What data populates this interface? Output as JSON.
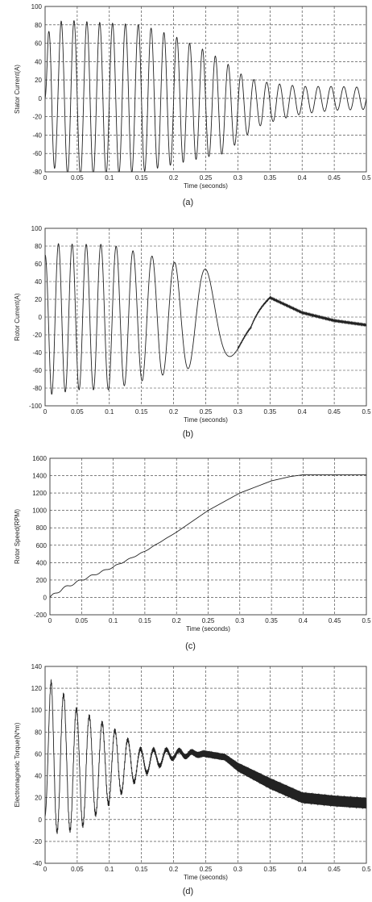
{
  "chart_data": [
    {
      "type": "line",
      "id": "a",
      "caption": "(a)",
      "xlabel": "Time (seconds)",
      "ylabel": "Stator Current(A)",
      "xlim": [
        0,
        0.5
      ],
      "ylim": [
        -80,
        100
      ],
      "xticks": [
        0,
        0.05,
        0.1,
        0.15,
        0.2,
        0.25,
        0.3,
        0.35,
        0.4,
        0.45,
        0.5
      ],
      "xtick_labels": [
        "0",
        "0.05",
        "0.1",
        "0.15",
        "0.2",
        "0.25",
        "0.3",
        "0.35",
        "0.4",
        "0.45",
        "0.5"
      ],
      "yticks": [
        -80,
        -60,
        -40,
        -20,
        0,
        20,
        40,
        60,
        80,
        100
      ],
      "ytick_labels": [
        "-80",
        "-60",
        "-40",
        "-20",
        "0",
        "20",
        "40",
        "60",
        "80",
        "100"
      ],
      "grid": true,
      "series": [
        {
          "description": "oscillating stator current (~50 Hz), amplitude decaying from ~90 A to ~12 A",
          "x": [
            0,
            0.005,
            0.01,
            0.015,
            0.02,
            0.025,
            0.03,
            0.05,
            0.1,
            0.15,
            0.2,
            0.25,
            0.28,
            0.3,
            0.33,
            0.36,
            0.4,
            0.45,
            0.5
          ],
          "envelope": [
            0,
            60,
            92,
            80,
            70,
            82,
            84,
            84,
            82,
            80,
            70,
            58,
            50,
            38,
            25,
            20,
            15,
            13,
            12
          ],
          "offset": [
            0,
            10,
            8,
            4,
            2,
            2,
            2,
            0,
            0,
            0,
            -2,
            -6,
            -10,
            -10,
            -6,
            -4,
            -2,
            0,
            0
          ],
          "frequency_hz": 50
        }
      ]
    },
    {
      "type": "line",
      "id": "b",
      "caption": "(b)",
      "xlabel": "Time (seconds)",
      "ylabel": "Rotor Current(A)",
      "xlim": [
        0,
        0.5
      ],
      "ylim": [
        -100,
        100
      ],
      "xticks": [
        0,
        0.05,
        0.1,
        0.15,
        0.2,
        0.25,
        0.3,
        0.35,
        0.4,
        0.45,
        0.5
      ],
      "xtick_labels": [
        "0",
        "0.05",
        "0.1",
        "0.15",
        "0.2",
        "0.25",
        "0.3",
        "0.35",
        "0.4",
        "0.45",
        "0.5"
      ],
      "yticks": [
        -100,
        -80,
        -60,
        -40,
        -20,
        0,
        20,
        40,
        60,
        80,
        100
      ],
      "ytick_labels": [
        "-100",
        "-80",
        "-60",
        "-40",
        "-20",
        "0",
        "20",
        "40",
        "60",
        "80",
        "100"
      ],
      "grid": true,
      "series": [
        {
          "description": "rotor current, frequency decreasing from ~48 Hz to ~0 as rotor accelerates; settles near -10 A",
          "x": [
            0,
            0.01,
            0.05,
            0.1,
            0.15,
            0.2,
            0.24,
            0.27,
            0.3,
            0.32,
            0.35,
            0.4,
            0.45,
            0.5
          ],
          "envelope": [
            70,
            85,
            82,
            82,
            72,
            62,
            55,
            52,
            40,
            30,
            0,
            0,
            0,
            0
          ],
          "offset": [
            0,
            -2,
            0,
            0,
            0,
            0,
            0,
            0,
            0,
            0,
            22,
            5,
            -4,
            -9
          ],
          "frequency_hz": [
            48,
            48,
            46,
            42,
            34,
            26,
            18,
            12,
            7,
            4,
            0,
            0,
            0,
            0
          ]
        }
      ]
    },
    {
      "type": "line",
      "id": "c",
      "caption": "(c)",
      "xlabel": "Time (seconds)",
      "ylabel": "Rotor Speed(RPM)",
      "xlim": [
        0,
        0.5
      ],
      "ylim": [
        -200,
        1600
      ],
      "xticks": [
        0,
        0.05,
        0.1,
        0.15,
        0.2,
        0.25,
        0.3,
        0.35,
        0.4,
        0.45,
        0.5
      ],
      "xtick_labels": [
        "0",
        "0.05",
        "0.1",
        "0.15",
        "0.2",
        "0.25",
        "0.3",
        "0.35",
        "0.4",
        "0.45",
        "0.5"
      ],
      "yticks": [
        -200,
        0,
        200,
        400,
        600,
        800,
        1000,
        1200,
        1400,
        1600
      ],
      "ytick_labels": [
        "-200",
        "0",
        "200",
        "400",
        "600",
        "800",
        "1000",
        "1200",
        "1400",
        "1600"
      ],
      "grid": true,
      "series": [
        {
          "description": "rotor speed rising from 0 to ~1410 RPM with small early ripple",
          "x": [
            0,
            0.02,
            0.05,
            0.1,
            0.15,
            0.2,
            0.25,
            0.3,
            0.35,
            0.38,
            0.4,
            0.45,
            0.5
          ],
          "y": [
            0,
            100,
            200,
            350,
            530,
            750,
            1000,
            1200,
            1340,
            1390,
            1410,
            1410,
            1410
          ]
        }
      ]
    },
    {
      "type": "line",
      "id": "d",
      "caption": "(d)",
      "xlabel": "Time (seconds)",
      "ylabel": "Electromagnetic Torque(N*m)",
      "xlim": [
        0,
        0.5
      ],
      "ylim": [
        -40,
        140
      ],
      "xticks": [
        0,
        0.05,
        0.1,
        0.15,
        0.2,
        0.25,
        0.3,
        0.35,
        0.4,
        0.45,
        0.5
      ],
      "xtick_labels": [
        "0",
        "0.05",
        "0.1",
        "0.15",
        "0.2",
        "0.25",
        "0.3",
        "0.35",
        "0.4",
        "0.45",
        "0.5"
      ],
      "yticks": [
        -40,
        -20,
        0,
        20,
        40,
        60,
        80,
        100,
        120,
        140
      ],
      "ytick_labels": [
        "-40",
        "-20",
        "0",
        "20",
        "40",
        "60",
        "80",
        "100",
        "120",
        "140"
      ],
      "grid": true,
      "series": [
        {
          "description": "electromagnetic torque, large decaying oscillation around ~55 N*m, then decline to ~15 N*m",
          "x": [
            0,
            0.01,
            0.02,
            0.05,
            0.1,
            0.15,
            0.2,
            0.25,
            0.28,
            0.3,
            0.35,
            0.4,
            0.45,
            0.5
          ],
          "mean": [
            40,
            55,
            55,
            45,
            50,
            52,
            60,
            60,
            57,
            48,
            33,
            20,
            17,
            15
          ],
          "envelope": [
            40,
            75,
            65,
            55,
            35,
            12,
            4,
            0,
            0,
            0,
            0,
            0,
            0,
            0
          ],
          "ripple": [
            0,
            2,
            2,
            2,
            2,
            2,
            2,
            3,
            3,
            4,
            5,
            5,
            5,
            5
          ]
        }
      ]
    }
  ]
}
